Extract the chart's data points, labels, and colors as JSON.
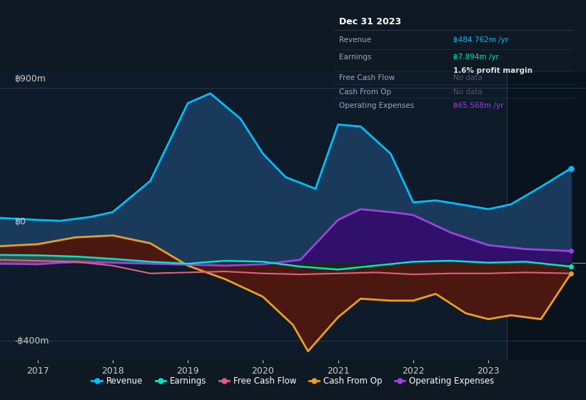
{
  "bg_color": "#0f1923",
  "plot_bg_color": "#0d1b2a",
  "grid_color": "#2a3a4a",
  "axis_label_color": "#cccccc",
  "ylabel_top": "฿900m",
  "ylabel_zero": "฿0",
  "ylabel_neg": "-฿400m",
  "x_ticks": [
    2017,
    2018,
    2019,
    2020,
    2021,
    2022,
    2023
  ],
  "x_min": 2016.5,
  "x_max": 2024.3,
  "y_min": -500,
  "y_max": 980,
  "revenue": {
    "x": [
      2016.5,
      2017.0,
      2017.3,
      2017.7,
      2018.0,
      2018.5,
      2019.0,
      2019.3,
      2019.7,
      2020.0,
      2020.3,
      2020.7,
      2021.0,
      2021.3,
      2021.7,
      2022.0,
      2022.3,
      2022.7,
      2023.0,
      2023.3,
      2023.7,
      2024.1
    ],
    "y": [
      230,
      220,
      215,
      235,
      260,
      420,
      820,
      870,
      740,
      560,
      440,
      380,
      710,
      700,
      560,
      310,
      320,
      295,
      275,
      300,
      390,
      485
    ],
    "color": "#00bfff",
    "fill_color": "#1a3a5c",
    "linewidth": 2.0
  },
  "earnings": {
    "x": [
      2016.5,
      2017.0,
      2017.5,
      2018.0,
      2018.5,
      2019.0,
      2019.5,
      2020.0,
      2020.5,
      2021.0,
      2021.5,
      2022.0,
      2022.5,
      2023.0,
      2023.5,
      2024.1
    ],
    "y": [
      40,
      38,
      32,
      20,
      5,
      -5,
      10,
      5,
      -20,
      -35,
      -15,
      5,
      10,
      0,
      5,
      -20
    ],
    "color": "#00e5cc",
    "fill_color": "#003322",
    "linewidth": 1.8
  },
  "free_cash_flow": {
    "x": [
      2016.5,
      2017.0,
      2017.5,
      2018.0,
      2018.5,
      2019.0,
      2019.5,
      2020.0,
      2020.5,
      2021.0,
      2021.5,
      2022.0,
      2022.5,
      2023.0,
      2023.5,
      2024.1
    ],
    "y": [
      15,
      10,
      5,
      -15,
      -55,
      -50,
      -45,
      -55,
      -60,
      -55,
      -50,
      -60,
      -55,
      -55,
      -50,
      -55
    ],
    "color": "#e06080",
    "linewidth": 1.5
  },
  "cash_from_op": {
    "x": [
      2016.5,
      2017.0,
      2017.5,
      2018.0,
      2018.5,
      2019.0,
      2019.5,
      2020.0,
      2020.4,
      2020.6,
      2021.0,
      2021.3,
      2021.7,
      2022.0,
      2022.3,
      2022.7,
      2023.0,
      2023.3,
      2023.7,
      2024.1
    ],
    "y": [
      85,
      95,
      130,
      140,
      100,
      -15,
      -85,
      -175,
      -320,
      -455,
      -280,
      -185,
      -195,
      -195,
      -160,
      -260,
      -290,
      -270,
      -290,
      -55
    ],
    "color": "#e8a020",
    "fill_color": "#4a1810",
    "linewidth": 2.0
  },
  "op_expenses": {
    "x": [
      2016.5,
      2017.0,
      2017.5,
      2018.0,
      2018.5,
      2019.0,
      2019.5,
      2020.0,
      2020.5,
      2021.0,
      2021.3,
      2021.7,
      2022.0,
      2022.5,
      2023.0,
      2023.5,
      2024.1
    ],
    "y": [
      -5,
      -8,
      5,
      0,
      -5,
      -10,
      -15,
      -8,
      15,
      220,
      275,
      260,
      245,
      155,
      90,
      70,
      60
    ],
    "color": "#a040e0",
    "fill_color": "#30106a",
    "linewidth": 2.0
  },
  "info_box": {
    "title": "Dec 31 2023",
    "title_color": "#ffffff",
    "bg_color": "#0d1420",
    "border_color": "#2a3a4a",
    "rows": [
      {
        "label": "Revenue",
        "value": "฿484.762m /yr",
        "value_color": "#00bfff",
        "subtext": null
      },
      {
        "label": "Earnings",
        "value": "฿7.894m /yr",
        "value_color": "#00e5cc",
        "subtext": "1.6% profit margin"
      },
      {
        "label": "Free Cash Flow",
        "value": "No data",
        "value_color": "#555566",
        "subtext": null
      },
      {
        "label": "Cash From Op",
        "value": "No data",
        "value_color": "#555566",
        "subtext": null
      },
      {
        "label": "Operating Expenses",
        "value": "฿65.568m /yr",
        "value_color": "#a040e0",
        "subtext": null
      }
    ]
  },
  "legend": [
    {
      "label": "Revenue",
      "color": "#00bfff"
    },
    {
      "label": "Earnings",
      "color": "#00e5cc"
    },
    {
      "label": "Free Cash Flow",
      "color": "#e06080"
    },
    {
      "label": "Cash From Op",
      "color": "#e8a020"
    },
    {
      "label": "Operating Expenses",
      "color": "#a040e0"
    }
  ]
}
